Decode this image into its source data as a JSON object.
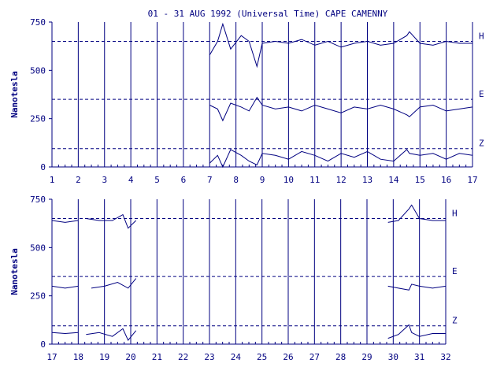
{
  "chart_data": [
    {
      "type": "line",
      "title": "01 - 31 AUG 1992 (Universal Time) CAPE CAMENNY",
      "ylabel": "Nanotesla",
      "xlabel": "",
      "x_ticks": [
        "1",
        "2",
        "3",
        "4",
        "5",
        "6",
        "7",
        "8",
        "9",
        "10",
        "11",
        "12",
        "13",
        "14",
        "15",
        "16",
        "17"
      ],
      "xlim": [
        1,
        17
      ],
      "ylim": [
        0,
        750
      ],
      "y_ticks": [
        "0",
        "250",
        "500",
        "750"
      ],
      "reference_lines": [
        650,
        350,
        95
      ],
      "grid": "vertical",
      "series": [
        {
          "name": "H",
          "x": [
            7.0,
            7.3,
            7.5,
            7.8,
            8.2,
            8.5,
            8.8,
            9.0,
            9.5,
            10.0,
            10.5,
            11.0,
            11.5,
            12.0,
            12.5,
            13.0,
            13.5,
            14.0,
            14.5,
            14.6,
            15.0,
            15.5,
            16.0,
            16.5,
            17.0
          ],
          "values": [
            580,
            650,
            740,
            610,
            680,
            650,
            520,
            640,
            650,
            640,
            660,
            630,
            650,
            620,
            640,
            650,
            630,
            640,
            680,
            700,
            640,
            630,
            650,
            640,
            640
          ]
        },
        {
          "name": "E",
          "x": [
            7.0,
            7.3,
            7.5,
            7.8,
            8.2,
            8.5,
            8.8,
            9.0,
            9.5,
            10.0,
            10.5,
            11.0,
            11.5,
            12.0,
            12.5,
            13.0,
            13.5,
            14.0,
            14.5,
            14.6,
            15.0,
            15.5,
            16.0,
            16.5,
            17.0
          ],
          "values": [
            320,
            300,
            240,
            330,
            310,
            290,
            360,
            320,
            300,
            310,
            290,
            320,
            300,
            280,
            310,
            300,
            320,
            300,
            270,
            260,
            310,
            320,
            290,
            300,
            310
          ]
        },
        {
          "name": "Z",
          "x": [
            7.0,
            7.3,
            7.5,
            7.8,
            8.2,
            8.5,
            8.8,
            9.0,
            9.5,
            10.0,
            10.5,
            11.0,
            11.5,
            12.0,
            12.5,
            13.0,
            13.5,
            14.0,
            14.5,
            14.6,
            15.0,
            15.5,
            16.0,
            16.5,
            17.0
          ],
          "values": [
            20,
            60,
            0,
            90,
            60,
            30,
            10,
            70,
            60,
            40,
            80,
            60,
            30,
            70,
            50,
            80,
            40,
            30,
            90,
            70,
            60,
            70,
            40,
            70,
            60
          ]
        }
      ]
    },
    {
      "type": "line",
      "title": "",
      "ylabel": "Nanotesla",
      "xlabel": "",
      "x_ticks": [
        "17",
        "18",
        "19",
        "20",
        "21",
        "22",
        "23",
        "24",
        "25",
        "26",
        "27",
        "28",
        "29",
        "30",
        "31",
        "32"
      ],
      "xlim": [
        17,
        32
      ],
      "ylim": [
        0,
        750
      ],
      "y_ticks": [
        "0",
        "250",
        "500",
        "750"
      ],
      "reference_lines": [
        650,
        350,
        95
      ],
      "grid": "vertical",
      "series": [
        {
          "name": "H",
          "segments": [
            {
              "x": [
                17.0,
                17.5,
                18.0
              ],
              "values": [
                640,
                630,
                640
              ]
            },
            {
              "x": [
                18.3,
                18.8,
                19.3,
                19.7,
                19.9,
                20.2
              ],
              "values": [
                650,
                640,
                640,
                670,
                600,
                640
              ]
            },
            {
              "x": [
                29.8,
                30.2,
                30.6,
                30.7,
                31.0,
                31.5,
                32.0
              ],
              "values": [
                630,
                640,
                700,
                720,
                650,
                640,
                640
              ]
            }
          ]
        },
        {
          "name": "E",
          "segments": [
            {
              "x": [
                17.0,
                17.5,
                18.0
              ],
              "values": [
                300,
                290,
                300
              ]
            },
            {
              "x": [
                18.5,
                19.0,
                19.5,
                19.9,
                20.2
              ],
              "values": [
                290,
                300,
                320,
                290,
                340
              ]
            },
            {
              "x": [
                29.8,
                30.2,
                30.6,
                30.7,
                31.0,
                31.5,
                32.0
              ],
              "values": [
                300,
                290,
                280,
                310,
                300,
                290,
                300
              ]
            }
          ]
        },
        {
          "name": "Z",
          "segments": [
            {
              "x": [
                17.0,
                17.5,
                18.0
              ],
              "values": [
                60,
                55,
                60
              ]
            },
            {
              "x": [
                18.3,
                18.8,
                19.3,
                19.7,
                19.9,
                20.2
              ],
              "values": [
                50,
                60,
                40,
                80,
                20,
                70
              ]
            },
            {
              "x": [
                29.8,
                30.2,
                30.6,
                30.7,
                31.0,
                31.5,
                32.0
              ],
              "values": [
                30,
                50,
                100,
                60,
                40,
                55,
                55
              ]
            }
          ]
        }
      ]
    }
  ]
}
